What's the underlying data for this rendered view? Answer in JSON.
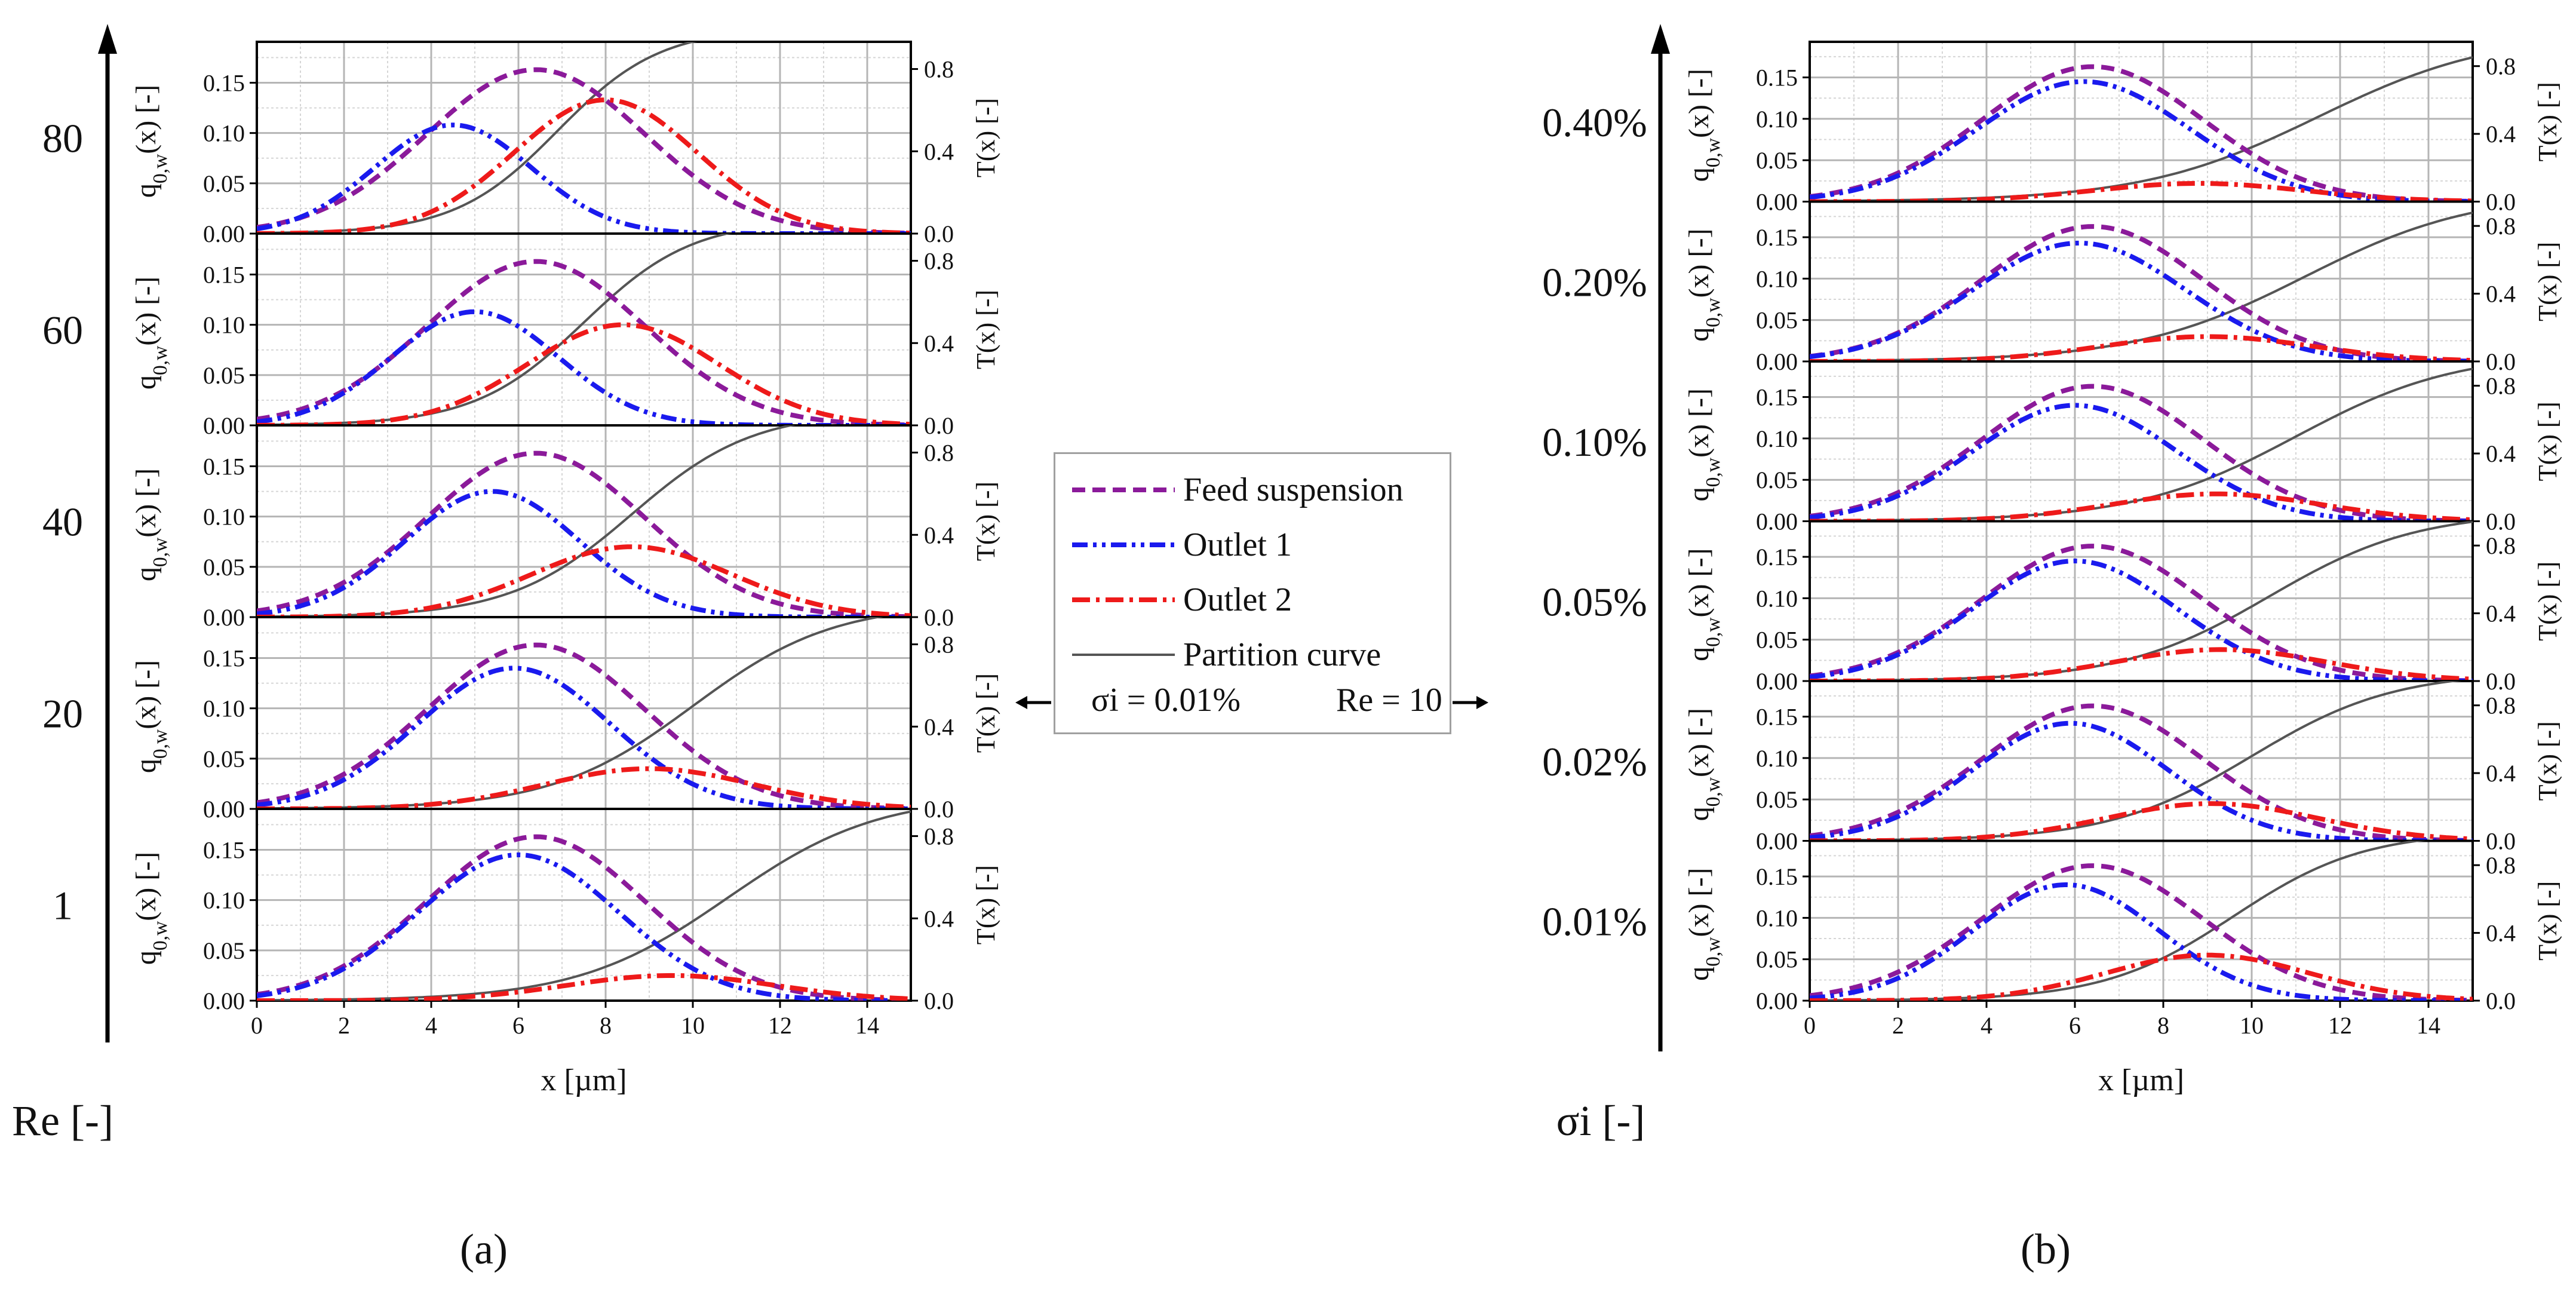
{
  "legend": {
    "feed_label": "Feed suspension",
    "outlet1_label": "Outlet 1",
    "outlet2_label": "Outlet 2",
    "partition_label": "Partition curve"
  },
  "conditions": {
    "left": "σi = 0.01%",
    "right": "Re = 10"
  },
  "colors": {
    "feed": "#8b1a9a",
    "outlet1": "#1a1aee",
    "outlet2": "#ee1a1a",
    "partition": "#555555"
  },
  "chart_data": [
    {
      "id": "a",
      "type": "line",
      "caption": "(a)",
      "stack_axis_label": "Re [-]",
      "xlabel": "x [µm]",
      "ylabel_left": "q0,w(x) [-]",
      "ylabel_right": "T(x) [-]",
      "xlim": [
        0,
        15
      ],
      "ylim_left": [
        0,
        0.18
      ],
      "ylim_right": [
        0,
        0.88
      ],
      "xticks": [
        "0",
        "2",
        "4",
        "6",
        "8",
        "10",
        "12",
        "14"
      ],
      "yticks_left": [
        "0.00",
        "0.05",
        "0.10",
        "0.15"
      ],
      "yticks_right": [
        "0.0",
        "0.4",
        "0.8"
      ],
      "feed": {
        "peak": 0.163,
        "mean": 6.4,
        "sd": 2.5
      },
      "panels": [
        {
          "label": "80",
          "outlet1": {
            "peak": 0.108,
            "mean": 4.5,
            "sd": 1.8
          },
          "outlet2": {
            "peak": 0.133,
            "mean": 8.0,
            "sd": 2.1
          },
          "partition": {
            "d50": 6.9,
            "k": 0.85
          }
        },
        {
          "label": "60",
          "outlet1": {
            "peak": 0.113,
            "mean": 5.0,
            "sd": 1.9
          },
          "outlet2": {
            "peak": 0.1,
            "mean": 8.4,
            "sd": 2.2
          },
          "partition": {
            "d50": 7.5,
            "k": 0.8
          }
        },
        {
          "label": "40",
          "outlet1": {
            "peak": 0.125,
            "mean": 5.4,
            "sd": 2.0
          },
          "outlet2": {
            "peak": 0.07,
            "mean": 8.6,
            "sd": 2.3
          },
          "partition": {
            "d50": 8.6,
            "k": 0.72
          }
        },
        {
          "label": "20",
          "outlet1": {
            "peak": 0.14,
            "mean": 5.9,
            "sd": 2.2
          },
          "outlet2": {
            "peak": 0.04,
            "mean": 9.0,
            "sd": 2.4
          },
          "partition": {
            "d50": 10.0,
            "k": 0.62
          }
        },
        {
          "label": "1",
          "outlet1": {
            "peak": 0.145,
            "mean": 6.0,
            "sd": 2.3
          },
          "outlet2": {
            "peak": 0.025,
            "mean": 9.5,
            "sd": 2.4
          },
          "partition": {
            "d50": 10.8,
            "k": 0.58
          }
        }
      ]
    },
    {
      "id": "b",
      "type": "line",
      "caption": "(b)",
      "stack_axis_label": "σi [-]",
      "xlabel": "x [µm]",
      "ylabel_left": "q0,w(x) [-]",
      "ylabel_right": "T(x) [-]",
      "xlim": [
        0,
        15
      ],
      "ylim_left": [
        0,
        0.18
      ],
      "ylim_right": [
        0,
        0.88
      ],
      "xticks": [
        "0",
        "2",
        "4",
        "6",
        "8",
        "10",
        "12",
        "14"
      ],
      "yticks_left": [
        "0.00",
        "0.05",
        "0.10",
        "0.15"
      ],
      "yticks_right": [
        "0.0",
        "0.4",
        "0.8"
      ],
      "feed": {
        "peak": 0.163,
        "mean": 6.4,
        "sd": 2.5
      },
      "panels": [
        {
          "label": "0.40%",
          "outlet1": {
            "peak": 0.145,
            "mean": 6.2,
            "sd": 2.4
          },
          "outlet2": {
            "peak": 0.022,
            "mean": 8.8,
            "sd": 2.4
          },
          "partition": {
            "d50": 11.5,
            "k": 0.5
          }
        },
        {
          "label": "0.20%",
          "outlet1": {
            "peak": 0.143,
            "mean": 6.1,
            "sd": 2.4
          },
          "outlet2": {
            "peak": 0.03,
            "mean": 9.0,
            "sd": 2.4
          },
          "partition": {
            "d50": 11.2,
            "k": 0.52
          }
        },
        {
          "label": "0.10%",
          "outlet1": {
            "peak": 0.14,
            "mean": 6.0,
            "sd": 2.3
          },
          "outlet2": {
            "peak": 0.033,
            "mean": 9.2,
            "sd": 2.4
          },
          "partition": {
            "d50": 11.0,
            "k": 0.55
          }
        },
        {
          "label": "0.05%",
          "outlet1": {
            "peak": 0.145,
            "mean": 6.0,
            "sd": 2.3
          },
          "outlet2": {
            "peak": 0.038,
            "mean": 9.3,
            "sd": 2.4
          },
          "partition": {
            "d50": 10.4,
            "k": 0.6
          }
        },
        {
          "label": "0.02%",
          "outlet1": {
            "peak": 0.142,
            "mean": 5.9,
            "sd": 2.2
          },
          "outlet2": {
            "peak": 0.045,
            "mean": 9.1,
            "sd": 2.4
          },
          "partition": {
            "d50": 10.0,
            "k": 0.62
          }
        },
        {
          "label": "0.01%",
          "outlet1": {
            "peak": 0.14,
            "mean": 5.8,
            "sd": 2.1
          },
          "outlet2": {
            "peak": 0.055,
            "mean": 9.0,
            "sd": 2.3
          },
          "partition": {
            "d50": 9.6,
            "k": 0.68
          }
        }
      ]
    }
  ]
}
